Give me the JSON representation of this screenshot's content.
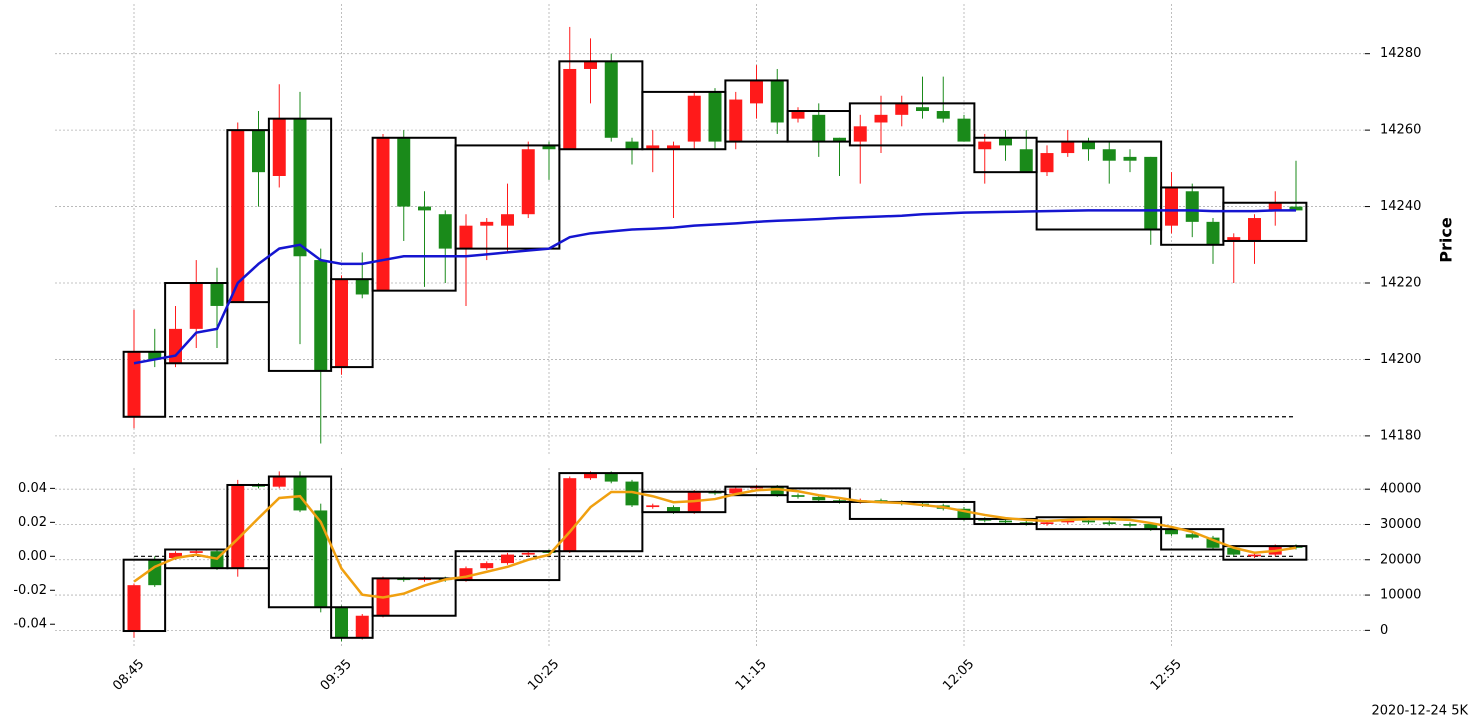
{
  "chart_data": [
    {
      "type": "candlestick",
      "ylabel": "Price",
      "open": [
        14185,
        14202,
        14199,
        14208,
        14220,
        14215,
        14260,
        14248,
        14263,
        14226,
        14198,
        14221,
        14218,
        14258,
        14240,
        14238,
        14229,
        14235,
        14235,
        14238,
        14256,
        14255,
        14276,
        14278,
        14257,
        14255,
        14255,
        14257,
        14270,
        14257,
        14267,
        14273,
        14263,
        14264,
        14258,
        14257,
        14262,
        14264,
        14266,
        14265,
        14263,
        14255,
        14258,
        14255,
        14249,
        14254,
        14257,
        14255,
        14253,
        14253,
        14235,
        14244,
        14236,
        14231,
        14231,
        14239,
        14240
      ],
      "high": [
        14213,
        14208,
        14214,
        14226,
        14224,
        14262,
        14265,
        14272,
        14270,
        14229,
        14222,
        14228,
        14259,
        14260,
        14244,
        14239,
        14238,
        14237,
        14246,
        14257,
        14257,
        14287,
        14284,
        14280,
        14258,
        14260,
        14257,
        14270,
        14271,
        14270,
        14277,
        14276,
        14266,
        14267,
        14258,
        14264,
        14269,
        14269,
        14274,
        14274,
        14264,
        14259,
        14260,
        14260,
        14256,
        14260,
        14258,
        14257,
        14255,
        14253,
        14249,
        14246,
        14237,
        14233,
        14238,
        14244,
        14252
      ],
      "low": [
        14182,
        14198,
        14198,
        14203,
        14203,
        14215,
        14240,
        14245,
        14204,
        14178,
        14196,
        14216,
        14218,
        14231,
        14219,
        14220,
        14214,
        14226,
        14228,
        14237,
        14247,
        14255,
        14267,
        14257,
        14251,
        14249,
        14237,
        14255,
        14255,
        14255,
        14263,
        14259,
        14262,
        14253,
        14248,
        14246,
        14254,
        14261,
        14263,
        14262,
        14257,
        14246,
        14252,
        14249,
        14248,
        14253,
        14252,
        14246,
        14249,
        14230,
        14233,
        14232,
        14225,
        14220,
        14225,
        14235,
        14239
      ],
      "close": [
        14202,
        14200,
        14208,
        14220,
        14214,
        14260,
        14249,
        14263,
        14227,
        14197,
        14221,
        14217,
        14258,
        14240,
        14239,
        14229,
        14235,
        14236,
        14238,
        14255,
        14255,
        14276,
        14278,
        14258,
        14255,
        14256,
        14256,
        14269,
        14257,
        14268,
        14273,
        14262,
        14265,
        14257,
        14257,
        14261,
        14264,
        14267,
        14265,
        14263,
        14257,
        14257,
        14256,
        14249,
        14254,
        14257,
        14255,
        14252,
        14252,
        14234,
        14245,
        14236,
        14230,
        14232,
        14237,
        14241,
        14239
      ],
      "up_color": "#ff1a1a",
      "down_color": "#1a8a1a",
      "line": {
        "color": "#1515d0",
        "values": [
          14199,
          14200,
          14201,
          14207,
          14208,
          14220,
          14225,
          14229,
          14230,
          14226,
          14225,
          14225,
          14226,
          14227,
          14227,
          14227,
          14227,
          14227.5,
          14228,
          14228.5,
          14229,
          14232,
          14233,
          14233.5,
          14234,
          14234.2,
          14234.5,
          14235,
          14235.3,
          14235.6,
          14236,
          14236.3,
          14236.5,
          14236.7,
          14237,
          14237.2,
          14237.4,
          14237.6,
          14238,
          14238.2,
          14238.4,
          14238.5,
          14238.6,
          14238.7,
          14238.8,
          14238.9,
          14239,
          14239,
          14239,
          14239,
          14239,
          14239,
          14238.8,
          14238.8,
          14238.8,
          14239,
          14239
        ]
      },
      "boxes": [
        {
          "start": 0,
          "end": 1,
          "top": 14202,
          "bottom": 14185
        },
        {
          "start": 2,
          "end": 4,
          "top": 14220,
          "bottom": 14199
        },
        {
          "start": 5,
          "end": 6,
          "top": 14260,
          "bottom": 14215
        },
        {
          "start": 7,
          "end": 9,
          "top": 14263,
          "bottom": 14197
        },
        {
          "start": 10,
          "end": 11,
          "top": 14221,
          "bottom": 14198
        },
        {
          "start": 12,
          "end": 15,
          "top": 14258,
          "bottom": 14218
        },
        {
          "start": 16,
          "end": 20,
          "top": 14256,
          "bottom": 14229
        },
        {
          "start": 21,
          "end": 24,
          "top": 14278,
          "bottom": 14255
        },
        {
          "start": 25,
          "end": 28,
          "top": 14270,
          "bottom": 14255
        },
        {
          "start": 29,
          "end": 31,
          "top": 14273,
          "bottom": 14257
        },
        {
          "start": 32,
          "end": 34,
          "top": 14265,
          "bottom": 14257
        },
        {
          "start": 35,
          "end": 40,
          "top": 14267,
          "bottom": 14256
        },
        {
          "start": 41,
          "end": 43,
          "top": 14258,
          "bottom": 14249
        },
        {
          "start": 44,
          "end": 49,
          "top": 14257,
          "bottom": 14234
        },
        {
          "start": 50,
          "end": 52,
          "top": 14245,
          "bottom": 14230
        },
        {
          "start": 53,
          "end": 56,
          "top": 14241,
          "bottom": 14231
        }
      ],
      "baseline": 14185,
      "ylim": [
        14175,
        14293
      ],
      "yticks": [
        14180,
        14200,
        14220,
        14240,
        14260,
        14280
      ],
      "grid": true
    },
    {
      "type": "candlestick",
      "categories": [
        "08:45",
        null,
        null,
        null,
        null,
        null,
        null,
        null,
        null,
        null,
        "09:35",
        null,
        null,
        null,
        null,
        null,
        null,
        null,
        null,
        null,
        "10:25",
        null,
        null,
        null,
        null,
        null,
        null,
        null,
        null,
        null,
        "11:15",
        null,
        null,
        null,
        null,
        null,
        null,
        null,
        null,
        null,
        "12:05",
        null,
        null,
        null,
        null,
        null,
        null,
        null,
        null,
        null,
        "12:55",
        null,
        null,
        null,
        null,
        null,
        null
      ],
      "open": [
        -0.044,
        -0.002,
        -0.001,
        0.002,
        0.003,
        -0.007,
        0.042,
        0.041,
        0.047,
        0.027,
        -0.03,
        -0.048,
        -0.035,
        -0.013,
        -0.014,
        -0.013,
        -0.014,
        -0.007,
        -0.004,
        0.001,
        0.003,
        0.003,
        0.046,
        0.049,
        0.044,
        0.029,
        0.029,
        0.026,
        0.038,
        0.037,
        0.04,
        0.041,
        0.036,
        0.035,
        0.033,
        0.032,
        0.033,
        0.032,
        0.031,
        0.03,
        0.028,
        0.022,
        0.021,
        0.02,
        0.019,
        0.02,
        0.021,
        0.02,
        0.019,
        0.019,
        0.016,
        0.013,
        0.011,
        0.005,
        0.0,
        0.001,
        0.006
      ],
      "high": [
        -0.016,
        0.0,
        0.003,
        0.004,
        0.004,
        0.045,
        0.043,
        0.05,
        0.05,
        0.031,
        -0.029,
        -0.034,
        -0.012,
        -0.012,
        -0.012,
        -0.012,
        -0.006,
        -0.003,
        0.002,
        0.003,
        0.004,
        0.047,
        0.05,
        0.05,
        0.045,
        0.031,
        0.03,
        0.039,
        0.039,
        0.041,
        0.042,
        0.042,
        0.037,
        0.036,
        0.034,
        0.034,
        0.034,
        0.033,
        0.032,
        0.031,
        0.029,
        0.023,
        0.022,
        0.021,
        0.021,
        0.022,
        0.022,
        0.021,
        0.02,
        0.02,
        0.017,
        0.014,
        0.012,
        0.006,
        0.002,
        0.007,
        0.007
      ],
      "low": [
        -0.048,
        -0.018,
        -0.002,
        0.001,
        -0.008,
        -0.012,
        0.04,
        0.04,
        0.026,
        -0.033,
        -0.05,
        -0.049,
        -0.036,
        -0.015,
        -0.015,
        -0.015,
        -0.015,
        -0.008,
        -0.005,
        0.0,
        0.001,
        0.002,
        0.045,
        0.043,
        0.029,
        0.028,
        0.025,
        0.025,
        0.036,
        0.036,
        0.039,
        0.035,
        0.034,
        0.032,
        0.031,
        0.031,
        0.031,
        0.03,
        0.029,
        0.027,
        0.021,
        0.02,
        0.019,
        0.018,
        0.018,
        0.019,
        0.019,
        0.018,
        0.017,
        0.015,
        0.012,
        0.01,
        0.004,
        0.0,
        -0.001,
        0.0,
        0.004
      ],
      "close": [
        -0.017,
        -0.017,
        0.002,
        0.003,
        -0.007,
        0.042,
        0.041,
        0.047,
        0.027,
        -0.03,
        -0.048,
        -0.035,
        -0.013,
        -0.014,
        -0.013,
        -0.014,
        -0.007,
        -0.004,
        0.001,
        0.002,
        0.002,
        0.046,
        0.049,
        0.044,
        0.03,
        0.03,
        0.026,
        0.038,
        0.037,
        0.04,
        0.041,
        0.036,
        0.035,
        0.033,
        0.032,
        0.033,
        0.032,
        0.031,
        0.03,
        0.028,
        0.022,
        0.021,
        0.02,
        0.019,
        0.02,
        0.021,
        0.02,
        0.019,
        0.018,
        0.016,
        0.013,
        0.011,
        0.005,
        0.001,
        0.001,
        0.006,
        0.005
      ],
      "up_color": "#ff1a1a",
      "down_color": "#1a8a1a",
      "line": {
        "color": "#f0a010",
        "axis": "y2",
        "values": [
          13800,
          18000,
          20500,
          21400,
          20300,
          25900,
          31800,
          37500,
          38000,
          30700,
          17500,
          10100,
          9300,
          10400,
          12700,
          14400,
          15200,
          16600,
          18000,
          20000,
          21400,
          27900,
          34900,
          39200,
          39200,
          38000,
          36300,
          36600,
          37200,
          38600,
          39700,
          40000,
          39400,
          38300,
          37500,
          36600,
          36300,
          36100,
          35500,
          34900,
          33800,
          32700,
          31800,
          31300,
          31000,
          31300,
          31500,
          31500,
          31300,
          30400,
          29300,
          27900,
          25600,
          23400,
          22000,
          22500,
          23400
        ]
      },
      "boxes": [
        {
          "start": 0,
          "end": 1,
          "top": -0.002,
          "bottom": -0.044
        },
        {
          "start": 2,
          "end": 4,
          "top": 0.004,
          "bottom": -0.007
        },
        {
          "start": 5,
          "end": 6,
          "top": 0.042,
          "bottom": -0.007
        },
        {
          "start": 7,
          "end": 9,
          "top": 0.047,
          "bottom": -0.03
        },
        {
          "start": 10,
          "end": 11,
          "top": -0.03,
          "bottom": -0.048
        },
        {
          "start": 12,
          "end": 15,
          "top": -0.013,
          "bottom": -0.035
        },
        {
          "start": 16,
          "end": 20,
          "top": 0.003,
          "bottom": -0.014
        },
        {
          "start": 21,
          "end": 24,
          "top": 0.049,
          "bottom": 0.003
        },
        {
          "start": 25,
          "end": 28,
          "top": 0.038,
          "bottom": 0.026
        },
        {
          "start": 29,
          "end": 31,
          "top": 0.041,
          "bottom": 0.036
        },
        {
          "start": 32,
          "end": 34,
          "top": 0.04,
          "bottom": 0.032
        },
        {
          "start": 35,
          "end": 40,
          "top": 0.032,
          "bottom": 0.022
        },
        {
          "start": 41,
          "end": 43,
          "top": 0.022,
          "bottom": 0.019
        },
        {
          "start": 44,
          "end": 49,
          "top": 0.023,
          "bottom": 0.016
        },
        {
          "start": 50,
          "end": 52,
          "top": 0.016,
          "bottom": 0.004
        },
        {
          "start": 53,
          "end": 56,
          "top": 0.006,
          "bottom": -0.002
        }
      ],
      "baseline": 0,
      "ylim": [
        -0.054,
        0.052
      ],
      "yticks": [
        0.04,
        0.02,
        {
          "value": 0,
          "label": "0.00"
        },
        -0.02,
        -0.04
      ],
      "y2lim": [
        -5000,
        46000
      ],
      "y2ticks": [
        0,
        10000,
        20000,
        30000,
        40000
      ],
      "grid": true,
      "footnote": "2020-12-24 5K"
    }
  ]
}
